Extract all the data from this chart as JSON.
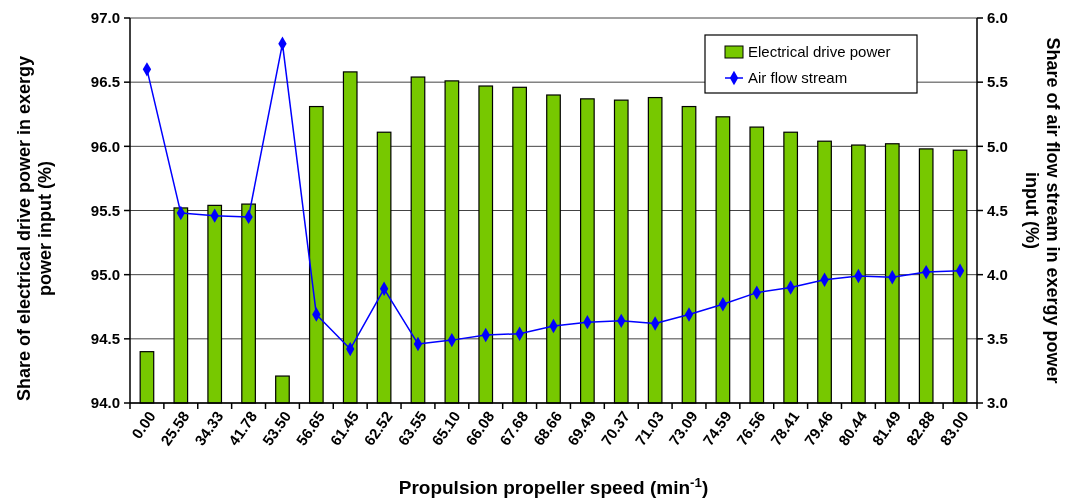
{
  "chart_data": {
    "type": "bar",
    "xlabel": "Propulsion propeller speed (min$^{-1}$)",
    "ylabel": "Share of electrical drive power in exergy power input (%)",
    "y2label": "Share of air flow stream in exergy power input (%)",
    "categories": [
      "0.00",
      "25.58",
      "34.33",
      "41.78",
      "53.50",
      "56.65",
      "61.45",
      "62.52",
      "63.55",
      "65.10",
      "66.08",
      "67.68",
      "68.66",
      "69.49",
      "70.37",
      "71.03",
      "73.09",
      "74.59",
      "76.56",
      "78.41",
      "79.46",
      "80.44",
      "81.49",
      "82.88",
      "83.00"
    ],
    "series": [
      {
        "name": "Electrical drive power",
        "color": "#77c800",
        "values": [
          94.4,
          95.52,
          95.54,
          95.55,
          94.21,
          96.31,
          96.58,
          96.11,
          96.54,
          96.51,
          96.47,
          96.46,
          96.4,
          96.37,
          96.36,
          96.38,
          96.31,
          96.23,
          96.15,
          96.11,
          96.04,
          96.01,
          96.02,
          95.98,
          95.97
        ]
      },
      {
        "name": "Air flow stream",
        "type": "line",
        "axis": "y2",
        "color": "#0000ff",
        "marker": "diamond",
        "values": [
          5.6,
          4.48,
          4.46,
          4.45,
          5.8,
          3.69,
          3.42,
          3.89,
          3.46,
          3.49,
          3.53,
          3.54,
          3.6,
          3.63,
          3.64,
          3.62,
          3.69,
          3.77,
          3.86,
          3.9,
          3.96,
          3.99,
          3.98,
          4.02,
          4.03
        ]
      }
    ],
    "ylim": [
      94.0,
      97.0
    ],
    "yticks": [
      {
        "value": 94,
        "label": "94.0"
      },
      {
        "value": 94.5,
        "label": "94.5"
      },
      {
        "value": 95,
        "label": "95.0"
      },
      {
        "value": 95.5,
        "label": "95.5"
      },
      {
        "value": 96,
        "label": "96.0"
      },
      {
        "value": 96.5,
        "label": "96.5"
      },
      {
        "value": 97,
        "label": "97.0"
      }
    ],
    "y2lim": [
      3.0,
      6.0
    ],
    "y2ticks": [
      {
        "value": 3,
        "label": "3.0"
      },
      {
        "value": 3.5,
        "label": "3.5"
      },
      {
        "value": 4,
        "label": "4.0"
      },
      {
        "value": 4.5,
        "label": "4.5"
      },
      {
        "value": 5,
        "label": "5.0"
      },
      {
        "value": 5.5,
        "label": "5.5"
      },
      {
        "value": 6,
        "label": "6.0"
      }
    ],
    "grid": "y",
    "legend": "top right"
  }
}
